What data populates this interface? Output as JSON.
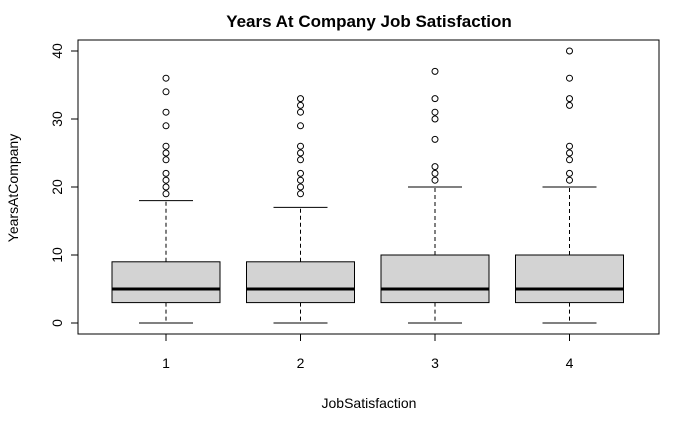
{
  "chart_data": {
    "type": "boxplot",
    "title": "Years At Company Job Satisfaction",
    "xlabel": "JobSatisfaction",
    "ylabel": "YearsAtCompany",
    "ylim": [
      0,
      40
    ],
    "yticks": [
      0,
      10,
      20,
      30,
      40
    ],
    "grid": false,
    "box_fill": "#d3d3d3",
    "categories": [
      "1",
      "2",
      "3",
      "4"
    ],
    "boxes": [
      {
        "category": "1",
        "lower_whisker": 0,
        "q1": 3,
        "median": 5,
        "q3": 9,
        "upper_whisker": 18,
        "outliers": [
          19,
          20,
          21,
          22,
          24,
          25,
          26,
          29,
          31,
          34,
          36
        ]
      },
      {
        "category": "2",
        "lower_whisker": 0,
        "q1": 3,
        "median": 5,
        "q3": 9,
        "upper_whisker": 17,
        "outliers": [
          19,
          20,
          21,
          22,
          24,
          25,
          26,
          29,
          31,
          32,
          33
        ]
      },
      {
        "category": "3",
        "lower_whisker": 0,
        "q1": 3,
        "median": 5,
        "q3": 10,
        "upper_whisker": 20,
        "outliers": [
          21,
          22,
          23,
          27,
          30,
          31,
          33,
          37
        ]
      },
      {
        "category": "4",
        "lower_whisker": 0,
        "q1": 3,
        "median": 5,
        "q3": 10,
        "upper_whisker": 20,
        "outliers": [
          21,
          22,
          24,
          25,
          26,
          32,
          33,
          36,
          40
        ]
      }
    ]
  }
}
